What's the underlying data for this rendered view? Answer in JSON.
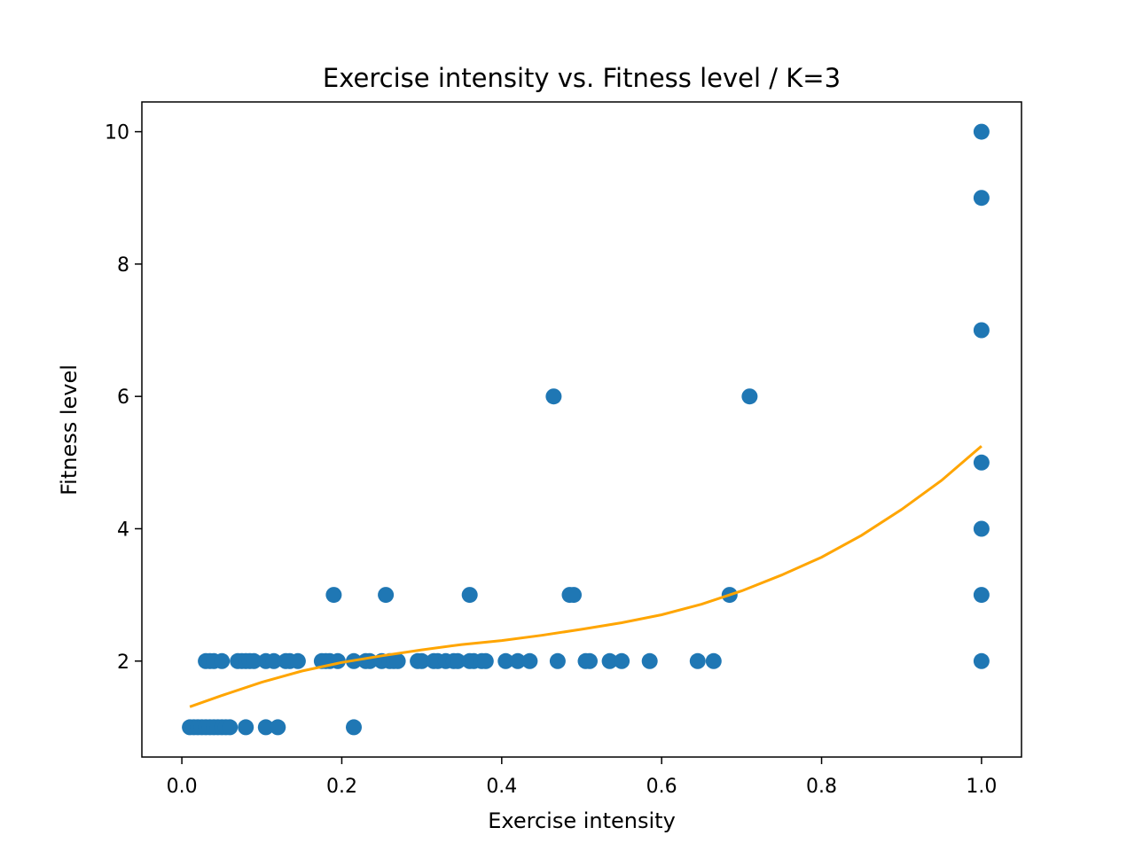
{
  "chart_data": {
    "type": "scatter",
    "title": "Exercise intensity vs. Fitness level / K=3",
    "xlabel": "Exercise intensity",
    "ylabel": "Fitness level",
    "xlim": [
      -0.05,
      1.05
    ],
    "ylim": [
      0.55,
      10.45
    ],
    "xticks": [
      0.0,
      0.2,
      0.4,
      0.6,
      0.8,
      1.0
    ],
    "xtick_labels": [
      "0.0",
      "0.2",
      "0.4",
      "0.6",
      "0.8",
      "1.0"
    ],
    "yticks": [
      2,
      4,
      6,
      8,
      10
    ],
    "ytick_labels": [
      "2",
      "4",
      "6",
      "8",
      "10"
    ],
    "grid": false,
    "points_color": "#1f77b4",
    "curve_color": "#ffa500",
    "points": [
      [
        0.01,
        1
      ],
      [
        0.015,
        1
      ],
      [
        0.02,
        1
      ],
      [
        0.025,
        1
      ],
      [
        0.03,
        1
      ],
      [
        0.035,
        1
      ],
      [
        0.04,
        1
      ],
      [
        0.045,
        1
      ],
      [
        0.05,
        1
      ],
      [
        0.055,
        1
      ],
      [
        0.06,
        1
      ],
      [
        0.08,
        1
      ],
      [
        0.105,
        1
      ],
      [
        0.12,
        1
      ],
      [
        0.215,
        1
      ],
      [
        0.03,
        2
      ],
      [
        0.035,
        2
      ],
      [
        0.04,
        2
      ],
      [
        0.05,
        2
      ],
      [
        0.07,
        2
      ],
      [
        0.075,
        2
      ],
      [
        0.08,
        2
      ],
      [
        0.085,
        2
      ],
      [
        0.09,
        2
      ],
      [
        0.105,
        2
      ],
      [
        0.115,
        2
      ],
      [
        0.13,
        2
      ],
      [
        0.135,
        2
      ],
      [
        0.145,
        2
      ],
      [
        0.175,
        2
      ],
      [
        0.18,
        2
      ],
      [
        0.185,
        2
      ],
      [
        0.195,
        2
      ],
      [
        0.215,
        2
      ],
      [
        0.23,
        2
      ],
      [
        0.235,
        2
      ],
      [
        0.25,
        2
      ],
      [
        0.26,
        2
      ],
      [
        0.265,
        2
      ],
      [
        0.27,
        2
      ],
      [
        0.295,
        2
      ],
      [
        0.3,
        2
      ],
      [
        0.315,
        2
      ],
      [
        0.32,
        2
      ],
      [
        0.33,
        2
      ],
      [
        0.34,
        2
      ],
      [
        0.345,
        2
      ],
      [
        0.36,
        2
      ],
      [
        0.365,
        2
      ],
      [
        0.375,
        2
      ],
      [
        0.38,
        2
      ],
      [
        0.405,
        2
      ],
      [
        0.42,
        2
      ],
      [
        0.435,
        2
      ],
      [
        0.47,
        2
      ],
      [
        0.505,
        2
      ],
      [
        0.51,
        2
      ],
      [
        0.535,
        2
      ],
      [
        0.55,
        2
      ],
      [
        0.585,
        2
      ],
      [
        0.645,
        2
      ],
      [
        0.665,
        2
      ],
      [
        0.19,
        3
      ],
      [
        0.255,
        3
      ],
      [
        0.36,
        3
      ],
      [
        0.485,
        3
      ],
      [
        0.49,
        3
      ],
      [
        0.685,
        3
      ],
      [
        0.465,
        6
      ],
      [
        0.71,
        6
      ],
      [
        1.0,
        2
      ],
      [
        1.0,
        3
      ],
      [
        1.0,
        4
      ],
      [
        1.0,
        5
      ],
      [
        1.0,
        7
      ],
      [
        1.0,
        9
      ],
      [
        1.0,
        10
      ]
    ],
    "fit_curve": {
      "x": [
        0.01,
        0.05,
        0.1,
        0.15,
        0.2,
        0.25,
        0.3,
        0.35,
        0.4,
        0.45,
        0.5,
        0.55,
        0.6,
        0.65,
        0.7,
        0.75,
        0.8,
        0.85,
        0.9,
        0.95,
        1.0
      ],
      "y": [
        1.31,
        1.48,
        1.68,
        1.85,
        1.98,
        2.08,
        2.17,
        2.25,
        2.31,
        2.39,
        2.48,
        2.58,
        2.7,
        2.86,
        3.06,
        3.3,
        3.57,
        3.9,
        4.29,
        4.73,
        5.25
      ]
    }
  }
}
